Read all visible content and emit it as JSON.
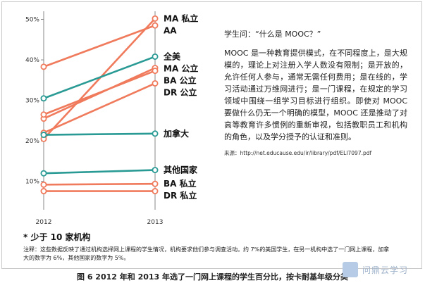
{
  "caption": "图 6 2012 年和 2013 年选了一门网上课程的学生百分比，按卡耐基年级分类",
  "note_star": "* 少于 10 家机构",
  "footnote": "注释：这些数据反映了通过机构选择网上课程的学生情况，机构要求他们参与调查活动。约 7%的美国学生，在另一机构中选了一门网上课程，加拿大的数字为 6%，其他国家的数字为 5%。",
  "side": {
    "heading": "学生问：“什么是 MOOC？”",
    "body": "MOOC 是一种教育提供模式，在不同程度上，是大规模的，理论上对注册入学人数没有限制；是开放的，允许任何人参与，通常无需任何费用；是在线的，学习活动通过万维网进行；是一门课程，在规定的学习领域中围绕一组学习目标进行组织。即使对 MOOC 要做什么仍无一个明确的模型，MOOC 还是推动了对高等教育许多惯例的重新审视，包括教职员工和机构的角色，以及学分授予的认证和准则。",
    "source": "来源：http://net.educause.edu/ir/library/pdf/ELI7097.pdf"
  },
  "watermark": "问鼎云学习",
  "chart_data": {
    "type": "line",
    "x": [
      "2012",
      "2013"
    ],
    "y_ticks": [
      "10%",
      "20%",
      "30%",
      "40%",
      "50%"
    ],
    "ylim": [
      3,
      52
    ],
    "series": [
      {
        "name": "MA 私立",
        "values": [
          20.5,
          50.2
        ],
        "color": "#f07a5c"
      },
      {
        "name": "AA",
        "values": [
          38.3,
          48.5
        ],
        "color": "#f07a5c"
      },
      {
        "name": "全美",
        "values": [
          30.5,
          40.8
        ],
        "color": "#2a9a95"
      },
      {
        "name": "MA 公立",
        "values": [
          25.5,
          38.0
        ],
        "color": "#f07a5c"
      },
      {
        "name": "BA 公立",
        "values": [
          26.5,
          37.3
        ],
        "color": "#f07a5c"
      },
      {
        "name": "DR 公立",
        "values": [
          22.0,
          34.2
        ],
        "color": "#f07a5c"
      },
      {
        "name": "加拿大",
        "values": [
          21.5,
          21.8
        ],
        "color": "#2a9a95"
      },
      {
        "name": "其他国家",
        "values": [
          12.0,
          12.8
        ],
        "color": "#2a9a95"
      },
      {
        "name": "BA 私立",
        "values": [
          9.2,
          9.4
        ],
        "color": "#f07a5c"
      },
      {
        "name": "DR 私立",
        "values": [
          7.6,
          7.6
        ],
        "color": "#f07a5c"
      }
    ]
  }
}
